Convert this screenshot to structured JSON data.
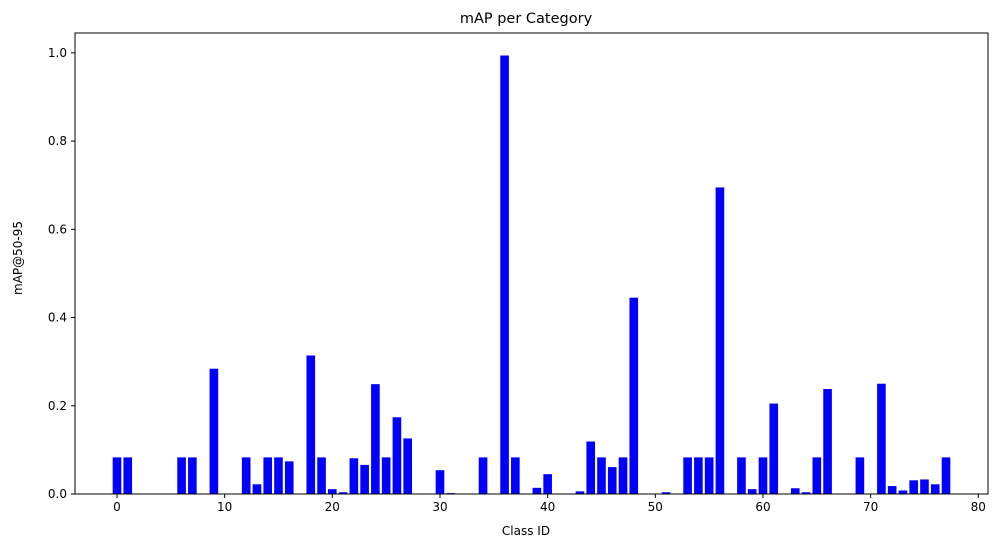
{
  "chart_data": {
    "type": "bar",
    "title": "mAP per Category",
    "xlabel": "Class ID",
    "ylabel": "mAP@50-95",
    "xlim": [
      -3.9,
      80.9
    ],
    "ylim": [
      0,
      1.045
    ],
    "xticks": [
      0,
      10,
      20,
      30,
      40,
      50,
      60,
      70,
      80
    ],
    "yticks": [
      0.0,
      0.2,
      0.4,
      0.6,
      0.8,
      1.0
    ],
    "ytick_labels": [
      "0.0",
      "0.2",
      "0.4",
      "0.6",
      "0.8",
      "1.0"
    ],
    "bar_color": "#0000ff",
    "grid": false,
    "bars": [
      {
        "x": 0,
        "y": 0.083
      },
      {
        "x": 1,
        "y": 0.083
      },
      {
        "x": 6,
        "y": 0.083
      },
      {
        "x": 7,
        "y": 0.083
      },
      {
        "x": 9,
        "y": 0.284
      },
      {
        "x": 12,
        "y": 0.083
      },
      {
        "x": 13,
        "y": 0.022
      },
      {
        "x": 14,
        "y": 0.083
      },
      {
        "x": 15,
        "y": 0.083
      },
      {
        "x": 16,
        "y": 0.074
      },
      {
        "x": 18,
        "y": 0.314
      },
      {
        "x": 19,
        "y": 0.083
      },
      {
        "x": 20,
        "y": 0.011
      },
      {
        "x": 21,
        "y": 0.004
      },
      {
        "x": 22,
        "y": 0.081
      },
      {
        "x": 23,
        "y": 0.066
      },
      {
        "x": 24,
        "y": 0.249
      },
      {
        "x": 25,
        "y": 0.083
      },
      {
        "x": 26,
        "y": 0.174
      },
      {
        "x": 27,
        "y": 0.126
      },
      {
        "x": 30,
        "y": 0.054
      },
      {
        "x": 31,
        "y": 0.002
      },
      {
        "x": 34,
        "y": 0.083
      },
      {
        "x": 36,
        "y": 0.994
      },
      {
        "x": 37,
        "y": 0.083
      },
      {
        "x": 39,
        "y": 0.014
      },
      {
        "x": 40,
        "y": 0.045
      },
      {
        "x": 43,
        "y": 0.006
      },
      {
        "x": 44,
        "y": 0.119
      },
      {
        "x": 45,
        "y": 0.083
      },
      {
        "x": 46,
        "y": 0.061
      },
      {
        "x": 47,
        "y": 0.083
      },
      {
        "x": 48,
        "y": 0.445
      },
      {
        "x": 51,
        "y": 0.004
      },
      {
        "x": 53,
        "y": 0.083
      },
      {
        "x": 54,
        "y": 0.083
      },
      {
        "x": 55,
        "y": 0.083
      },
      {
        "x": 56,
        "y": 0.695
      },
      {
        "x": 58,
        "y": 0.083
      },
      {
        "x": 59,
        "y": 0.011
      },
      {
        "x": 60,
        "y": 0.083
      },
      {
        "x": 61,
        "y": 0.205
      },
      {
        "x": 63,
        "y": 0.013
      },
      {
        "x": 64,
        "y": 0.004
      },
      {
        "x": 65,
        "y": 0.083
      },
      {
        "x": 66,
        "y": 0.238
      },
      {
        "x": 69,
        "y": 0.083
      },
      {
        "x": 71,
        "y": 0.25
      },
      {
        "x": 72,
        "y": 0.018
      },
      {
        "x": 73,
        "y": 0.008
      },
      {
        "x": 74,
        "y": 0.031
      },
      {
        "x": 75,
        "y": 0.033
      },
      {
        "x": 76,
        "y": 0.022
      },
      {
        "x": 77,
        "y": 0.083
      }
    ]
  }
}
